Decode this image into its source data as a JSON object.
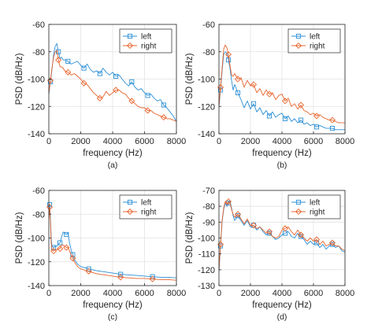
{
  "chart_data": [
    {
      "type": "line",
      "caption": "(a)",
      "xlabel": "frequency (Hz)",
      "ylabel": "PSD (dB/Hz)",
      "xlim": [
        0,
        8000
      ],
      "ylim": [
        -140,
        -60
      ],
      "xticks": [
        0,
        2000,
        4000,
        6000,
        8000
      ],
      "yticks": [
        -140,
        -120,
        -100,
        -80,
        -60
      ],
      "grid": true,
      "legend_position": "top-right",
      "series": [
        {
          "name": "left",
          "color": "#2c8fd6",
          "marker": "square",
          "x": [
            0,
            100,
            200,
            300,
            400,
            500,
            600,
            700,
            800,
            900,
            1000,
            1200,
            1400,
            1600,
            1800,
            2000,
            2200,
            2400,
            2600,
            2800,
            3000,
            3200,
            3400,
            3600,
            3800,
            4000,
            4200,
            4400,
            4600,
            4800,
            5000,
            5200,
            5400,
            5600,
            5800,
            6000,
            6200,
            6400,
            6600,
            6800,
            7000,
            7200,
            7400,
            7600,
            7800,
            8000
          ],
          "y": [
            -111,
            -102,
            -93,
            -82,
            -76,
            -74,
            -80,
            -85,
            -84,
            -86,
            -86,
            -87,
            -89,
            -88,
            -87,
            -90,
            -92,
            -89,
            -93,
            -95,
            -94,
            -96,
            -92,
            -95,
            -97,
            -95,
            -98,
            -97,
            -100,
            -103,
            -105,
            -102,
            -106,
            -108,
            -107,
            -110,
            -112,
            -111,
            -114,
            -116,
            -115,
            -119,
            -121,
            -124,
            -127,
            -131
          ]
        },
        {
          "name": "right",
          "color": "#e8642c",
          "marker": "diamond",
          "x": [
            0,
            100,
            200,
            300,
            400,
            500,
            600,
            700,
            800,
            900,
            1000,
            1200,
            1400,
            1600,
            1800,
            2000,
            2200,
            2400,
            2600,
            2800,
            3000,
            3200,
            3400,
            3600,
            3800,
            4000,
            4200,
            4400,
            4600,
            4800,
            5000,
            5200,
            5400,
            5600,
            5800,
            6000,
            6200,
            6400,
            6600,
            6800,
            7000,
            7200,
            7400,
            7600,
            7800,
            8000
          ],
          "y": [
            -110,
            -101,
            -92,
            -84,
            -80,
            -79,
            -86,
            -91,
            -91,
            -92,
            -94,
            -95,
            -97,
            -96,
            -98,
            -100,
            -103,
            -104,
            -107,
            -110,
            -112,
            -114,
            -113,
            -109,
            -112,
            -110,
            -108,
            -108,
            -110,
            -111,
            -114,
            -116,
            -118,
            -120,
            -121,
            -121,
            -123,
            -123,
            -125,
            -126,
            -127,
            -128,
            -129,
            -129,
            -130,
            -131
          ]
        }
      ]
    },
    {
      "type": "line",
      "caption": "(b)",
      "xlabel": "frequency (Hz)",
      "ylabel": "PSD (dB/Hz)",
      "xlim": [
        0,
        8000
      ],
      "ylim": [
        -140,
        -60
      ],
      "xticks": [
        0,
        2000,
        4000,
        6000,
        8000
      ],
      "yticks": [
        -140,
        -120,
        -100,
        -80,
        -60
      ],
      "grid": true,
      "legend_position": "top-right",
      "series": [
        {
          "name": "left",
          "color": "#2c8fd6",
          "marker": "square",
          "x": [
            0,
            100,
            200,
            300,
            400,
            500,
            600,
            700,
            800,
            900,
            1000,
            1200,
            1400,
            1600,
            1800,
            2000,
            2200,
            2400,
            2600,
            2800,
            3000,
            3200,
            3400,
            3600,
            3800,
            4000,
            4200,
            4400,
            4600,
            4800,
            5000,
            5200,
            5400,
            5600,
            5800,
            6000,
            6200,
            6400,
            6600,
            6800,
            7000,
            7200,
            7400,
            7600,
            7800,
            8000
          ],
          "y": [
            -120,
            -108,
            -94,
            -82,
            -80,
            -81,
            -86,
            -92,
            -101,
            -108,
            -104,
            -110,
            -115,
            -121,
            -116,
            -122,
            -118,
            -124,
            -121,
            -126,
            -123,
            -127,
            -124,
            -128,
            -126,
            -125,
            -129,
            -127,
            -131,
            -129,
            -132,
            -130,
            -133,
            -132,
            -134,
            -133,
            -135,
            -134,
            -135,
            -136,
            -136,
            -136,
            -137,
            -137,
            -137,
            -137
          ]
        },
        {
          "name": "right",
          "color": "#e8642c",
          "marker": "diamond",
          "x": [
            0,
            100,
            200,
            300,
            400,
            500,
            600,
            700,
            800,
            900,
            1000,
            1200,
            1400,
            1600,
            1800,
            2000,
            2200,
            2400,
            2600,
            2800,
            3000,
            3200,
            3400,
            3600,
            3800,
            4000,
            4200,
            4400,
            4600,
            4800,
            5000,
            5200,
            5400,
            5600,
            5800,
            6000,
            6200,
            6400,
            6600,
            6800,
            7000,
            7200,
            7400,
            7600,
            7800,
            8000
          ],
          "y": [
            -119,
            -106,
            -92,
            -78,
            -75,
            -77,
            -82,
            -90,
            -97,
            -98,
            -96,
            -100,
            -99,
            -106,
            -101,
            -105,
            -104,
            -110,
            -107,
            -112,
            -108,
            -111,
            -110,
            -115,
            -112,
            -111,
            -116,
            -114,
            -120,
            -118,
            -122,
            -119,
            -123,
            -124,
            -126,
            -125,
            -127,
            -126,
            -128,
            -129,
            -130,
            -130,
            -131,
            -132,
            -132,
            -132
          ]
        }
      ]
    },
    {
      "type": "line",
      "caption": "(c)",
      "xlabel": "frequency (Hz)",
      "ylabel": "PSD (dB/Hz)",
      "xlim": [
        0,
        8000
      ],
      "ylim": [
        -140,
        -60
      ],
      "xticks": [
        0,
        2000,
        4000,
        6000,
        8000
      ],
      "yticks": [
        -140,
        -120,
        -100,
        -80,
        -60
      ],
      "grid": true,
      "legend_position": "top-right",
      "series": [
        {
          "name": "left",
          "color": "#2c8fd6",
          "marker": "square",
          "x": [
            0,
            50,
            100,
            150,
            200,
            300,
            400,
            500,
            600,
            700,
            800,
            900,
            1000,
            1100,
            1200,
            1300,
            1400,
            1500,
            1600,
            1800,
            2000,
            2500,
            3000,
            3500,
            4000,
            4500,
            5000,
            5500,
            6000,
            6500,
            7000,
            7500,
            8000
          ],
          "y": [
            -80,
            -72,
            -82,
            -100,
            -107,
            -108,
            -107,
            -107,
            -105,
            -104,
            -99,
            -95,
            -96,
            -97,
            -96,
            -104,
            -110,
            -114,
            -118,
            -122,
            -124,
            -126,
            -127.5,
            -128.5,
            -129.5,
            -130.5,
            -131,
            -131.5,
            -132,
            -132.5,
            -133,
            -133,
            -133.5
          ]
        },
        {
          "name": "right",
          "color": "#e8642c",
          "marker": "diamond",
          "x": [
            0,
            50,
            100,
            150,
            200,
            300,
            400,
            500,
            600,
            700,
            800,
            900,
            1000,
            1100,
            1200,
            1300,
            1400,
            1500,
            1600,
            1800,
            2000,
            2500,
            3000,
            3500,
            4000,
            4500,
            5000,
            5500,
            6000,
            6500,
            7000,
            7500,
            8000
          ],
          "y": [
            -84,
            -74,
            -86,
            -104,
            -110,
            -111,
            -110,
            -110,
            -109,
            -109,
            -106,
            -106,
            -107,
            -108,
            -108,
            -111,
            -114,
            -117,
            -120,
            -124,
            -126,
            -128,
            -130,
            -131,
            -132,
            -133,
            -133.5,
            -134,
            -134,
            -134.5,
            -135,
            -135,
            -135.5
          ]
        }
      ]
    },
    {
      "type": "line",
      "caption": "(d)",
      "xlabel": "frequency (Hz)",
      "ylabel": "PSD (dB/Hz)",
      "xlim": [
        0,
        8000
      ],
      "ylim": [
        -130,
        -70
      ],
      "xticks": [
        0,
        2000,
        4000,
        6000,
        8000
      ],
      "yticks": [
        -130,
        -120,
        -110,
        -100,
        -90,
        -80,
        -70
      ],
      "grid": true,
      "legend_position": "top-right",
      "series": [
        {
          "name": "left",
          "color": "#2c8fd6",
          "marker": "square",
          "x": [
            0,
            100,
            200,
            300,
            400,
            500,
            600,
            700,
            800,
            900,
            1000,
            1200,
            1400,
            1600,
            1800,
            2000,
            2200,
            2400,
            2600,
            2800,
            3000,
            3200,
            3400,
            3600,
            3800,
            4000,
            4200,
            4400,
            4600,
            4800,
            5000,
            5200,
            5400,
            5600,
            5800,
            6000,
            6200,
            6400,
            6600,
            6800,
            7000,
            7200,
            7400,
            7600,
            7800,
            8000
          ],
          "y": [
            -121,
            -105,
            -90,
            -82,
            -78,
            -80,
            -78,
            -77,
            -81,
            -86,
            -89,
            -86,
            -89,
            -92,
            -89,
            -93,
            -92,
            -95,
            -93,
            -96,
            -98,
            -97,
            -99,
            -101,
            -100,
            -98,
            -97,
            -96,
            -99,
            -100,
            -97,
            -99,
            -101,
            -104,
            -102,
            -104,
            -103,
            -106,
            -104,
            -107,
            -105,
            -104,
            -106,
            -105,
            -108,
            -109
          ]
        },
        {
          "name": "right",
          "color": "#e8642c",
          "marker": "diamond",
          "x": [
            0,
            100,
            200,
            300,
            400,
            500,
            600,
            700,
            800,
            900,
            1000,
            1200,
            1400,
            1600,
            1800,
            2000,
            2200,
            2400,
            2600,
            2800,
            3000,
            3200,
            3400,
            3600,
            3800,
            4000,
            4200,
            4400,
            4600,
            4800,
            5000,
            5200,
            5400,
            5600,
            5800,
            6000,
            6200,
            6400,
            6600,
            6800,
            7000,
            7200,
            7400,
            7600,
            7800,
            8000
          ],
          "y": [
            -120,
            -104,
            -89,
            -81,
            -77,
            -79,
            -77,
            -78,
            -82,
            -85,
            -87,
            -85,
            -88,
            -91,
            -88,
            -92,
            -92,
            -94,
            -93,
            -95,
            -97,
            -96,
            -99,
            -100,
            -99,
            -95,
            -94,
            -93,
            -96,
            -98,
            -95,
            -98,
            -100,
            -102,
            -100,
            -102,
            -101,
            -104,
            -102,
            -105,
            -104,
            -103,
            -105,
            -105,
            -107,
            -108
          ]
        }
      ]
    }
  ]
}
